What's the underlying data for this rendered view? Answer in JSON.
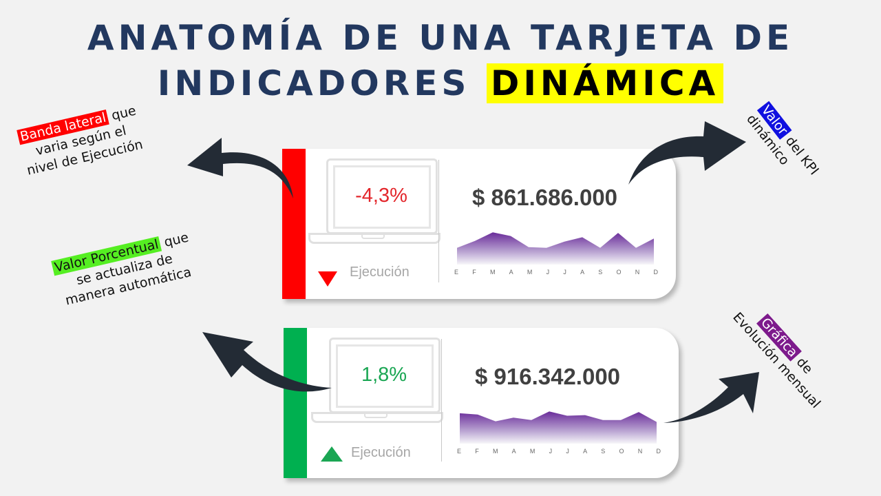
{
  "title": {
    "line1": "ANATOMÍA  DE  UNA TARJETA DE",
    "line2_prefix": "INDICADORES ",
    "line2_highlight": "DINÁMICA",
    "color": "#22385f",
    "highlight_color": "#ffff00"
  },
  "annotations": {
    "band": {
      "tag": "Banda lateral",
      "rest1": " que",
      "line2": "varia según el",
      "line3": "nivel de Ejecución",
      "tag_color": "#ff0000"
    },
    "percent": {
      "tag": "Valor Porcentual",
      "rest1": " que",
      "line2": "se actualiza de",
      "line3": "manera automática",
      "tag_color": "#55ee22"
    },
    "kpi": {
      "tag": "Valor",
      "rest1": " del KPI",
      "line2": "dinámico",
      "tag_color": "#1010e0"
    },
    "chart": {
      "tag": "Gráfica",
      "rest1": " de",
      "line2": "Evolución mensual",
      "tag_color": "#7d1a8c"
    }
  },
  "cards": [
    {
      "band_color": "#ff0000",
      "percent": "-4,3%",
      "percent_color": "#e3262b",
      "trend": "down",
      "trend_color": "#ff0000",
      "label": "Ejecución",
      "amount": "$ 861.686.000"
    },
    {
      "band_color": "#00b050",
      "percent": "1,8%",
      "percent_color": "#1aa653",
      "trend": "up",
      "trend_color": "#1aa653",
      "label": "Ejecución",
      "amount": "$ 916.342.000"
    }
  ],
  "months": [
    "E",
    "F",
    "M",
    "A",
    "M",
    "J",
    "J",
    "A",
    "S",
    "O",
    "N",
    "D"
  ],
  "chart_data": [
    {
      "type": "area",
      "title": "Evolución mensual (tarjeta 1)",
      "categories": [
        "E",
        "F",
        "M",
        "A",
        "M",
        "J",
        "J",
        "A",
        "S",
        "O",
        "N",
        "D"
      ],
      "values": [
        27,
        38,
        52,
        46,
        28,
        27,
        37,
        44,
        27,
        51,
        27,
        42
      ],
      "xlabel": "",
      "ylabel": "",
      "grid": false,
      "note": "relative heights (sparkline, no axis)"
    },
    {
      "type": "area",
      "title": "Evolución mensual (tarjeta 2)",
      "categories": [
        "E",
        "F",
        "M",
        "A",
        "M",
        "J",
        "J",
        "A",
        "S",
        "O",
        "N",
        "D"
      ],
      "values": [
        49,
        47,
        36,
        42,
        38,
        52,
        45,
        46,
        38,
        38,
        51,
        35
      ],
      "xlabel": "",
      "ylabel": "",
      "grid": false,
      "note": "relative heights (sparkline, no axis)"
    }
  ],
  "icons": {
    "laptop": "laptop-icon",
    "down": "triangle-down-icon",
    "up": "triangle-up-icon",
    "arrow": "curved-arrow-icon"
  }
}
